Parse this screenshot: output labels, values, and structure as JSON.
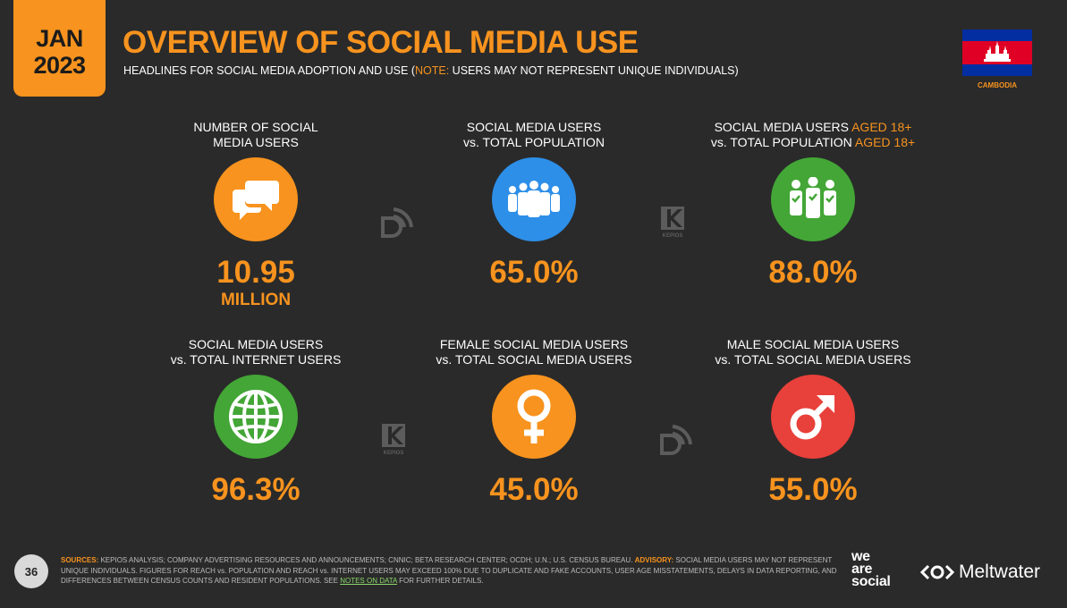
{
  "header": {
    "date_month": "JAN",
    "date_year": "2023",
    "title": "OVERVIEW OF SOCIAL MEDIA USE",
    "subtitle_pre": "HEADLINES FOR SOCIAL MEDIA ADOPTION AND USE (",
    "subtitle_note": "NOTE:",
    "subtitle_post": " USERS MAY NOT REPRESENT UNIQUE INDIVIDUALS)",
    "country": "CAMBODIA"
  },
  "colors": {
    "accent": "#f7931e",
    "background": "#2a2a2a",
    "orange": "#f7931e",
    "blue": "#2d8fe8",
    "green": "#43a636",
    "red": "#e8403a",
    "flag_blue": "#032ea1",
    "flag_red": "#e00025"
  },
  "cards": [
    {
      "label_1": "NUMBER OF SOCIAL",
      "label_2": "MEDIA USERS",
      "value": "10.95",
      "unit": "MILLION",
      "icon": "chat-bubbles-icon",
      "color": "orange"
    },
    {
      "label_1": "SOCIAL MEDIA USERS",
      "label_2": "vs. TOTAL POPULATION",
      "value": "65.0%",
      "icon": "people-group-icon",
      "color": "blue"
    },
    {
      "label_1a": "SOCIAL MEDIA USERS ",
      "label_1b": "AGED 18+",
      "label_2a": "vs. TOTAL POPULATION ",
      "label_2b": "AGED 18+",
      "value": "88.0%",
      "icon": "adults-check-icon",
      "color": "green"
    },
    {
      "label_1": "SOCIAL MEDIA USERS",
      "label_2": "vs. TOTAL INTERNET USERS",
      "value": "96.3%",
      "icon": "globe-icon",
      "color": "green"
    },
    {
      "label_1": "FEMALE SOCIAL MEDIA USERS",
      "label_2": "vs. TOTAL SOCIAL MEDIA USERS",
      "value": "45.0%",
      "icon": "female-symbol-icon",
      "color": "orange"
    },
    {
      "label_1": "MALE SOCIAL MEDIA USERS",
      "label_2": "vs. TOTAL SOCIAL MEDIA USERS",
      "value": "55.0%",
      "icon": "male-symbol-icon",
      "color": "red"
    }
  ],
  "watermarks": {
    "kepios_text": "KEPIOS"
  },
  "footer": {
    "page_number": "36",
    "sources_key": "SOURCES:",
    "sources_text": " KEPIOS ANALYSIS; COMPANY ADVERTISING RESOURCES AND ANNOUNCEMENTS; CNNIC; BETA RESEARCH CENTER; OCDH; U.N.; U.S. CENSUS BUREAU. ",
    "advisory_key": "ADVISORY:",
    "advisory_text": " SOCIAL MEDIA USERS MAY NOT REPRESENT UNIQUE INDIVIDUALS. FIGURES FOR REACH vs. POPULATION AND REACH vs. INTERNET USERS MAY EXCEED 100% DUE TO DUPLICATE AND FAKE ACCOUNTS, USER AGE MISSTATEMENTS, DELAYS IN DATA REPORTING, AND DIFFERENCES BETWEEN CENSUS COUNTS AND RESIDENT POPULATIONS. SEE ",
    "notes_link": "NOTES ON DATA",
    "tail_text": " FOR FURTHER DETAILS.",
    "brand_line1": "we",
    "brand_line2": "are",
    "brand_line3": "social",
    "meltwater": "Meltwater"
  }
}
